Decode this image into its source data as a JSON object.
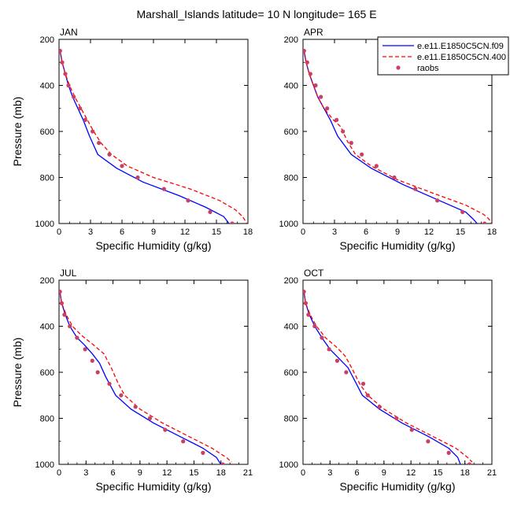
{
  "figure": {
    "title": "Marshall_Islands  latitude= 10 N longitude= 165 E"
  },
  "legend": {
    "placement": "top-right of APR panel",
    "entries": [
      {
        "label": "e.e11.E1850C5CN.f09",
        "style": "solid",
        "color": "#0000ff"
      },
      {
        "label": "e.e11.E1850C5CN.400",
        "style": "dashed",
        "color": "#ff0000"
      },
      {
        "label": "raobs",
        "style": "markers",
        "color": "#c84064"
      }
    ]
  },
  "chart_data": [
    {
      "type": "line",
      "panel": "JAN",
      "xlabel": "Specific Humidity (g/kg)",
      "ylabel": "Pressure (mb)",
      "xlim": [
        0,
        18
      ],
      "ylim": [
        200,
        1000
      ],
      "y_reversed": true,
      "xticks": [
        0,
        3,
        6,
        9,
        12,
        15,
        18
      ],
      "yticks": [
        200,
        400,
        600,
        800,
        1000
      ],
      "series": [
        {
          "name": "e.e11.E1850C5CN.f09",
          "style": "solid",
          "color": "#0000ff",
          "points": [
            [
              0.1,
              250
            ],
            [
              0.3,
              300
            ],
            [
              0.6,
              350
            ],
            [
              0.9,
              400
            ],
            [
              1.3,
              450
            ],
            [
              1.8,
              500
            ],
            [
              2.3,
              550
            ],
            [
              2.9,
              620
            ],
            [
              3.7,
              700
            ],
            [
              5.5,
              760
            ],
            [
              8.0,
              820
            ],
            [
              11.5,
              880
            ],
            [
              14.0,
              930
            ],
            [
              15.7,
              970
            ],
            [
              16.2,
              1000
            ]
          ]
        },
        {
          "name": "e.e11.E1850C5CN.400",
          "style": "dashed",
          "color": "#ff0000",
          "points": [
            [
              0.1,
              250
            ],
            [
              0.3,
              300
            ],
            [
              0.6,
              350
            ],
            [
              1.0,
              400
            ],
            [
              1.5,
              450
            ],
            [
              2.1,
              500
            ],
            [
              2.7,
              550
            ],
            [
              3.3,
              600
            ],
            [
              4.0,
              650
            ],
            [
              5.0,
              700
            ],
            [
              6.5,
              750
            ],
            [
              9.0,
              800
            ],
            [
              12.5,
              850
            ],
            [
              15.3,
              900
            ],
            [
              16.8,
              940
            ],
            [
              17.5,
              970
            ],
            [
              17.9,
              1000
            ]
          ]
        },
        {
          "name": "raobs",
          "style": "markers",
          "color": "#c84064",
          "points": [
            [
              0.1,
              250
            ],
            [
              0.3,
              300
            ],
            [
              0.6,
              350
            ],
            [
              0.9,
              400
            ],
            [
              1.4,
              450
            ],
            [
              2.0,
              500
            ],
            [
              2.5,
              550
            ],
            [
              3.2,
              600
            ],
            [
              3.8,
              650
            ],
            [
              4.8,
              700
            ],
            [
              6.0,
              750
            ],
            [
              7.5,
              800
            ],
            [
              10.0,
              850
            ],
            [
              12.3,
              900
            ],
            [
              14.4,
              950
            ],
            [
              16.5,
              1000
            ]
          ]
        }
      ]
    },
    {
      "type": "line",
      "panel": "APR",
      "xlabel": "Specific Humidity (g/kg)",
      "ylabel": "",
      "xlim": [
        0,
        18
      ],
      "ylim": [
        200,
        1000
      ],
      "y_reversed": true,
      "xticks": [
        0,
        3,
        6,
        9,
        12,
        15,
        18
      ],
      "yticks": [
        200,
        400,
        600,
        800,
        1000
      ],
      "series": [
        {
          "name": "e.e11.E1850C5CN.f09",
          "style": "solid",
          "color": "#0000ff",
          "points": [
            [
              0.1,
              250
            ],
            [
              0.3,
              300
            ],
            [
              0.6,
              350
            ],
            [
              1.0,
              400
            ],
            [
              1.4,
              450
            ],
            [
              2.0,
              500
            ],
            [
              2.6,
              550
            ],
            [
              3.3,
              620
            ],
            [
              4.6,
              700
            ],
            [
              6.5,
              760
            ],
            [
              9.5,
              830
            ],
            [
              13.0,
              900
            ],
            [
              15.5,
              950
            ],
            [
              16.2,
              980
            ],
            [
              16.6,
              1000
            ]
          ]
        },
        {
          "name": "e.e11.E1850C5CN.400",
          "style": "dashed",
          "color": "#ff0000",
          "points": [
            [
              0.1,
              250
            ],
            [
              0.3,
              300
            ],
            [
              0.6,
              350
            ],
            [
              1.0,
              400
            ],
            [
              1.4,
              450
            ],
            [
              2.0,
              500
            ],
            [
              2.9,
              550
            ],
            [
              3.6,
              580
            ],
            [
              4.2,
              640
            ],
            [
              5.0,
              700
            ],
            [
              6.5,
              750
            ],
            [
              9.0,
              810
            ],
            [
              12.5,
              870
            ],
            [
              15.5,
              920
            ],
            [
              17.2,
              960
            ],
            [
              17.7,
              980
            ],
            [
              18.0,
              1000
            ]
          ]
        },
        {
          "name": "raobs",
          "style": "markers",
          "color": "#c84064",
          "points": [
            [
              0.1,
              250
            ],
            [
              0.4,
              300
            ],
            [
              0.7,
              350
            ],
            [
              1.2,
              400
            ],
            [
              1.7,
              450
            ],
            [
              2.3,
              500
            ],
            [
              3.2,
              550
            ],
            [
              3.8,
              600
            ],
            [
              4.6,
              650
            ],
            [
              5.6,
              700
            ],
            [
              7.0,
              750
            ],
            [
              8.7,
              800
            ],
            [
              10.7,
              850
            ],
            [
              12.8,
              900
            ],
            [
              15.2,
              950
            ],
            [
              17.3,
              1000
            ]
          ]
        }
      ]
    },
    {
      "type": "line",
      "panel": "JUL",
      "xlabel": "Specific Humidity (g/kg)",
      "ylabel": "Pressure (mb)",
      "xlim": [
        0,
        21
      ],
      "ylim": [
        200,
        1000
      ],
      "y_reversed": true,
      "xticks": [
        0,
        3,
        6,
        9,
        12,
        15,
        18,
        21
      ],
      "yticks": [
        200,
        400,
        600,
        800,
        1000
      ],
      "series": [
        {
          "name": "e.e11.E1850C5CN.f09",
          "style": "solid",
          "color": "#0000ff",
          "points": [
            [
              0.1,
              250
            ],
            [
              0.3,
              300
            ],
            [
              0.7,
              350
            ],
            [
              1.2,
              400
            ],
            [
              2.0,
              450
            ],
            [
              2.8,
              480
            ],
            [
              3.7,
              520
            ],
            [
              4.5,
              560
            ],
            [
              5.2,
              620
            ],
            [
              6.3,
              700
            ],
            [
              8.0,
              760
            ],
            [
              10.5,
              820
            ],
            [
              13.5,
              880
            ],
            [
              16.0,
              930
            ],
            [
              17.5,
              970
            ],
            [
              18.0,
              1000
            ]
          ]
        },
        {
          "name": "e.e11.E1850C5CN.400",
          "style": "dashed",
          "color": "#ff0000",
          "points": [
            [
              0.1,
              250
            ],
            [
              0.3,
              300
            ],
            [
              0.8,
              350
            ],
            [
              1.5,
              400
            ],
            [
              2.5,
              440
            ],
            [
              3.8,
              480
            ],
            [
              5.0,
              520
            ],
            [
              5.8,
              580
            ],
            [
              6.6,
              650
            ],
            [
              7.3,
              700
            ],
            [
              9.0,
              760
            ],
            [
              11.5,
              820
            ],
            [
              14.5,
              880
            ],
            [
              17.0,
              930
            ],
            [
              18.6,
              970
            ],
            [
              19.2,
              990
            ]
          ]
        },
        {
          "name": "raobs",
          "style": "markers",
          "color": "#c84064",
          "points": [
            [
              0.1,
              250
            ],
            [
              0.3,
              300
            ],
            [
              0.6,
              350
            ],
            [
              1.2,
              400
            ],
            [
              2.0,
              450
            ],
            [
              2.9,
              500
            ],
            [
              3.7,
              550
            ],
            [
              4.3,
              600
            ],
            [
              5.6,
              650
            ],
            [
              6.9,
              700
            ],
            [
              8.5,
              750
            ],
            [
              10.1,
              800
            ],
            [
              11.8,
              850
            ],
            [
              13.8,
              900
            ],
            [
              16.0,
              950
            ],
            [
              18.2,
              1000
            ]
          ]
        }
      ]
    },
    {
      "type": "line",
      "panel": "OCT",
      "xlabel": "Specific Humidity (g/kg)",
      "ylabel": "",
      "xlim": [
        0,
        21
      ],
      "ylim": [
        200,
        1000
      ],
      "y_reversed": true,
      "xticks": [
        0,
        3,
        6,
        9,
        12,
        15,
        18,
        21
      ],
      "yticks": [
        200,
        400,
        600,
        800,
        1000
      ],
      "series": [
        {
          "name": "e.e11.E1850C5CN.f09",
          "style": "solid",
          "color": "#0000ff",
          "points": [
            [
              0.1,
              250
            ],
            [
              0.3,
              300
            ],
            [
              0.7,
              350
            ],
            [
              1.3,
              400
            ],
            [
              2.1,
              450
            ],
            [
              3.0,
              500
            ],
            [
              4.0,
              540
            ],
            [
              5.0,
              580
            ],
            [
              5.8,
              640
            ],
            [
              6.6,
              700
            ],
            [
              8.5,
              760
            ],
            [
              11.0,
              820
            ],
            [
              14.0,
              880
            ],
            [
              16.2,
              930
            ],
            [
              17.2,
              970
            ],
            [
              17.5,
              1000
            ]
          ]
        },
        {
          "name": "e.e11.E1850C5CN.400",
          "style": "dashed",
          "color": "#ff0000",
          "points": [
            [
              0.1,
              250
            ],
            [
              0.3,
              300
            ],
            [
              0.8,
              350
            ],
            [
              1.5,
              400
            ],
            [
              2.5,
              450
            ],
            [
              3.7,
              490
            ],
            [
              4.7,
              530
            ],
            [
              5.4,
              580
            ],
            [
              6.3,
              650
            ],
            [
              7.2,
              700
            ],
            [
              9.0,
              760
            ],
            [
              11.5,
              820
            ],
            [
              14.5,
              880
            ],
            [
              17.0,
              930
            ],
            [
              18.3,
              970
            ],
            [
              18.8,
              990
            ]
          ]
        },
        {
          "name": "raobs",
          "style": "markers",
          "color": "#c84064",
          "points": [
            [
              0.1,
              250
            ],
            [
              0.3,
              300
            ],
            [
              0.6,
              350
            ],
            [
              1.3,
              400
            ],
            [
              2.1,
              450
            ],
            [
              2.9,
              500
            ],
            [
              3.8,
              550
            ],
            [
              4.8,
              600
            ],
            [
              6.7,
              650
            ],
            [
              7.2,
              700
            ],
            [
              8.5,
              750
            ],
            [
              10.4,
              800
            ],
            [
              12.1,
              850
            ],
            [
              13.9,
              900
            ],
            [
              16.2,
              950
            ],
            [
              18.5,
              1000
            ]
          ]
        }
      ]
    }
  ]
}
